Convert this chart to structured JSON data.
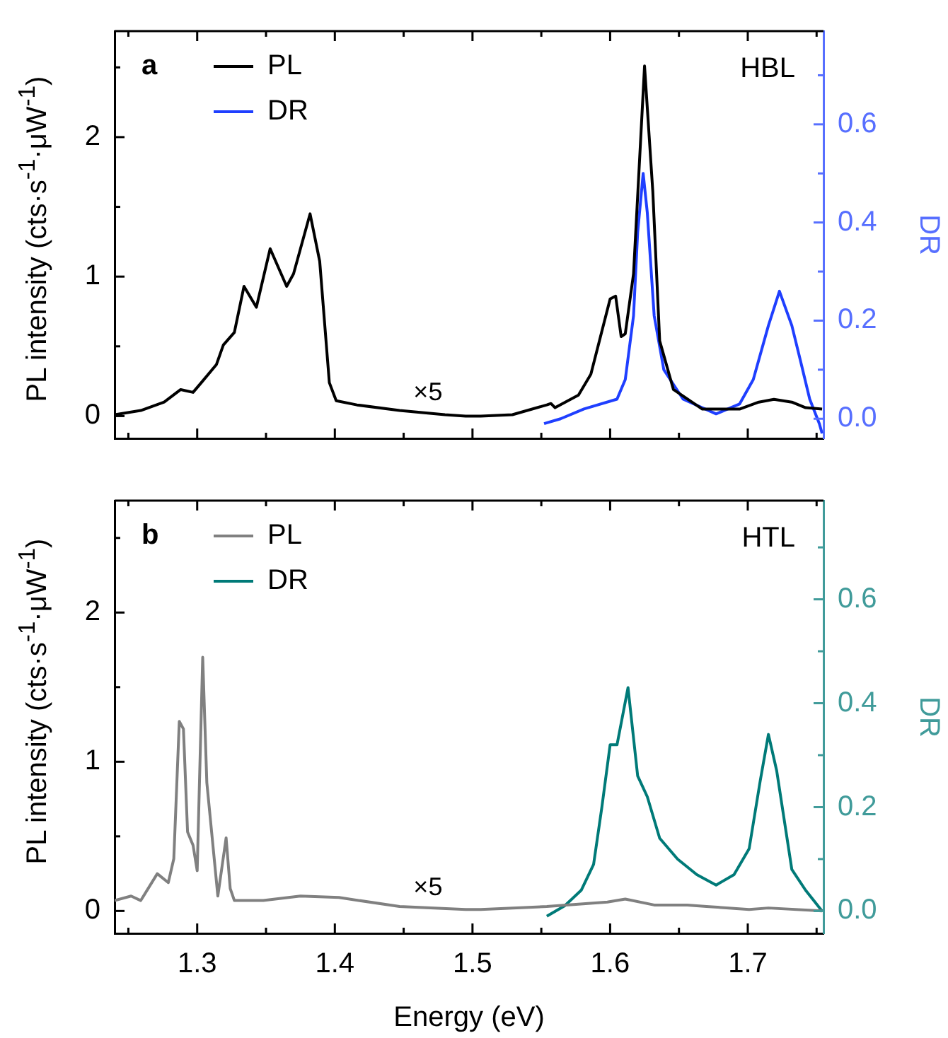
{
  "chart_data": [
    {
      "type": "line",
      "ylabel": "PL intensity (cts·s$^{-1}$·μW$^{-1}$)",
      "y2label": "DR",
      "legend": "top left",
      "marker": "none",
      "tick_labels": "y",
      "annotations": [
        "a",
        "HBL",
        "×5"
      ],
      "xlim": [
        1.24,
        1.755
      ],
      "xticks": [
        {
          "value": 1.25,
          "label": null
        },
        1.3,
        {
          "value": 1.35,
          "label": null
        },
        1.4,
        {
          "value": 1.45,
          "label": null
        },
        1.5,
        {
          "value": 1.55,
          "label": null
        },
        1.6,
        {
          "value": 1.65,
          "label": null
        },
        1.7,
        {
          "value": 1.75,
          "label": null
        }
      ],
      "ylim": [
        -0.16,
        2.76
      ],
      "yticks": [
        0,
        {
          "value": 0.5,
          "label": null
        },
        1,
        {
          "value": 1.5,
          "label": null
        },
        2,
        {
          "value": 2.5,
          "label": null
        }
      ],
      "y2lim": [
        -0.04,
        0.79
      ],
      "y2ticks": [
        {
          "value": 0,
          "label": "0.0"
        },
        {
          "value": 0.1,
          "label": null
        },
        {
          "value": 0.2,
          "label": "0.2"
        },
        {
          "value": 0.3,
          "label": null
        },
        {
          "value": 0.4,
          "label": "0.4"
        },
        {
          "value": 0.5,
          "label": null
        },
        {
          "value": 0.6,
          "label": "0.6"
        },
        {
          "value": 0.7,
          "label": null
        }
      ],
      "series": [
        {
          "name": "PL",
          "color": "#000000",
          "x": [
            1.24,
            1.259,
            1.276,
            1.288,
            1.297,
            1.303,
            1.314,
            1.319,
            1.327,
            1.334,
            1.343,
            1.353,
            1.365,
            1.37,
            1.382,
            1.389,
            1.396,
            1.401,
            1.416,
            1.447,
            1.48,
            1.495,
            1.506,
            1.529,
            1.554,
            1.557,
            1.56,
            1.577,
            1.586,
            1.593,
            1.6,
            1.604,
            1.608,
            1.611,
            1.617,
            1.625,
            1.631,
            1.636,
            1.646,
            1.667,
            1.694,
            1.708,
            1.719,
            1.732,
            1.742,
            1.754
          ],
          "values": [
            0.01,
            0.04,
            0.1,
            0.19,
            0.17,
            0.24,
            0.37,
            0.51,
            0.6,
            0.93,
            0.78,
            1.2,
            0.93,
            1.02,
            1.45,
            1.11,
            0.24,
            0.11,
            0.08,
            0.04,
            0.01,
            0.0,
            0.0,
            0.01,
            0.08,
            0.09,
            0.06,
            0.15,
            0.3,
            0.57,
            0.84,
            0.86,
            0.57,
            0.59,
            1.02,
            2.51,
            1.61,
            0.54,
            0.19,
            0.05,
            0.05,
            0.1,
            0.12,
            0.1,
            0.06,
            0.05
          ]
        },
        {
          "name": "DR",
          "color": "#1f3fff",
          "axis": "y2",
          "x": [
            1.552,
            1.564,
            1.581,
            1.605,
            1.611,
            1.617,
            1.62,
            1.624,
            1.627,
            1.632,
            1.639,
            1.653,
            1.677,
            1.694,
            1.704,
            1.715,
            1.723,
            1.732,
            1.739,
            1.745,
            1.752,
            1.754
          ],
          "values": [
            -0.01,
            0.0,
            0.02,
            0.04,
            0.08,
            0.21,
            0.38,
            0.5,
            0.42,
            0.21,
            0.1,
            0.04,
            0.01,
            0.03,
            0.08,
            0.19,
            0.26,
            0.19,
            0.11,
            0.04,
            -0.01,
            -0.03
          ]
        }
      ]
    },
    {
      "type": "line",
      "xlabel": "Energy (eV)",
      "ylabel": "PL intensity (cts·s$^{-1}$·μW$^{-1}$)",
      "y2label": "DR",
      "legend": "top left",
      "marker": "none",
      "annotations": [
        "b",
        "HTL",
        "×5"
      ],
      "xlim": [
        1.24,
        1.755
      ],
      "xticks": [
        {
          "value": 1.25,
          "label": null
        },
        1.3,
        {
          "value": 1.35,
          "label": null
        },
        1.4,
        {
          "value": 1.45,
          "label": null
        },
        1.5,
        {
          "value": 1.55,
          "label": null
        },
        1.6,
        {
          "value": 1.65,
          "label": null
        },
        1.7,
        {
          "value": 1.75,
          "label": null
        }
      ],
      "ylim": [
        -0.15,
        2.75
      ],
      "yticks": [
        0,
        {
          "value": 0.5,
          "label": null
        },
        1,
        {
          "value": 1.5,
          "label": null
        },
        2,
        {
          "value": 2.5,
          "label": null
        }
      ],
      "y2lim": [
        -0.043,
        0.79
      ],
      "y2ticks": [
        {
          "value": 0,
          "label": "0.0"
        },
        {
          "value": 0.1,
          "label": null
        },
        {
          "value": 0.2,
          "label": "0.2"
        },
        {
          "value": 0.3,
          "label": null
        },
        {
          "value": 0.4,
          "label": "0.4"
        },
        {
          "value": 0.5,
          "label": null
        },
        {
          "value": 0.6,
          "label": "0.6"
        },
        {
          "value": 0.7,
          "label": null
        }
      ],
      "series": [
        {
          "name": "PL",
          "color": "#808080",
          "x": [
            1.24,
            1.252,
            1.259,
            1.271,
            1.279,
            1.283,
            1.287,
            1.29,
            1.293,
            1.297,
            1.3,
            1.304,
            1.307,
            1.315,
            1.321,
            1.324,
            1.327,
            1.348,
            1.375,
            1.403,
            1.447,
            1.495,
            1.506,
            1.554,
            1.598,
            1.611,
            1.632,
            1.656,
            1.67,
            1.701,
            1.715,
            1.754
          ],
          "values": [
            0.07,
            0.1,
            0.07,
            0.25,
            0.19,
            0.35,
            1.27,
            1.22,
            0.53,
            0.44,
            0.27,
            1.7,
            0.86,
            0.1,
            0.49,
            0.15,
            0.07,
            0.07,
            0.1,
            0.09,
            0.03,
            0.01,
            0.01,
            0.03,
            0.06,
            0.08,
            0.04,
            0.04,
            0.03,
            0.01,
            0.02,
            0.0
          ]
        },
        {
          "name": "DR",
          "color": "#007a78",
          "axis": "y2",
          "x": [
            1.554,
            1.567,
            1.579,
            1.588,
            1.594,
            1.6,
            1.605,
            1.613,
            1.62,
            1.627,
            1.636,
            1.649,
            1.663,
            1.677,
            1.69,
            1.701,
            1.709,
            1.715,
            1.721,
            1.732,
            1.742,
            1.754
          ],
          "values": [
            -0.01,
            0.01,
            0.04,
            0.09,
            0.2,
            0.32,
            0.32,
            0.43,
            0.26,
            0.22,
            0.14,
            0.1,
            0.07,
            0.05,
            0.07,
            0.12,
            0.25,
            0.34,
            0.27,
            0.08,
            0.04,
            0.0
          ]
        }
      ]
    }
  ]
}
